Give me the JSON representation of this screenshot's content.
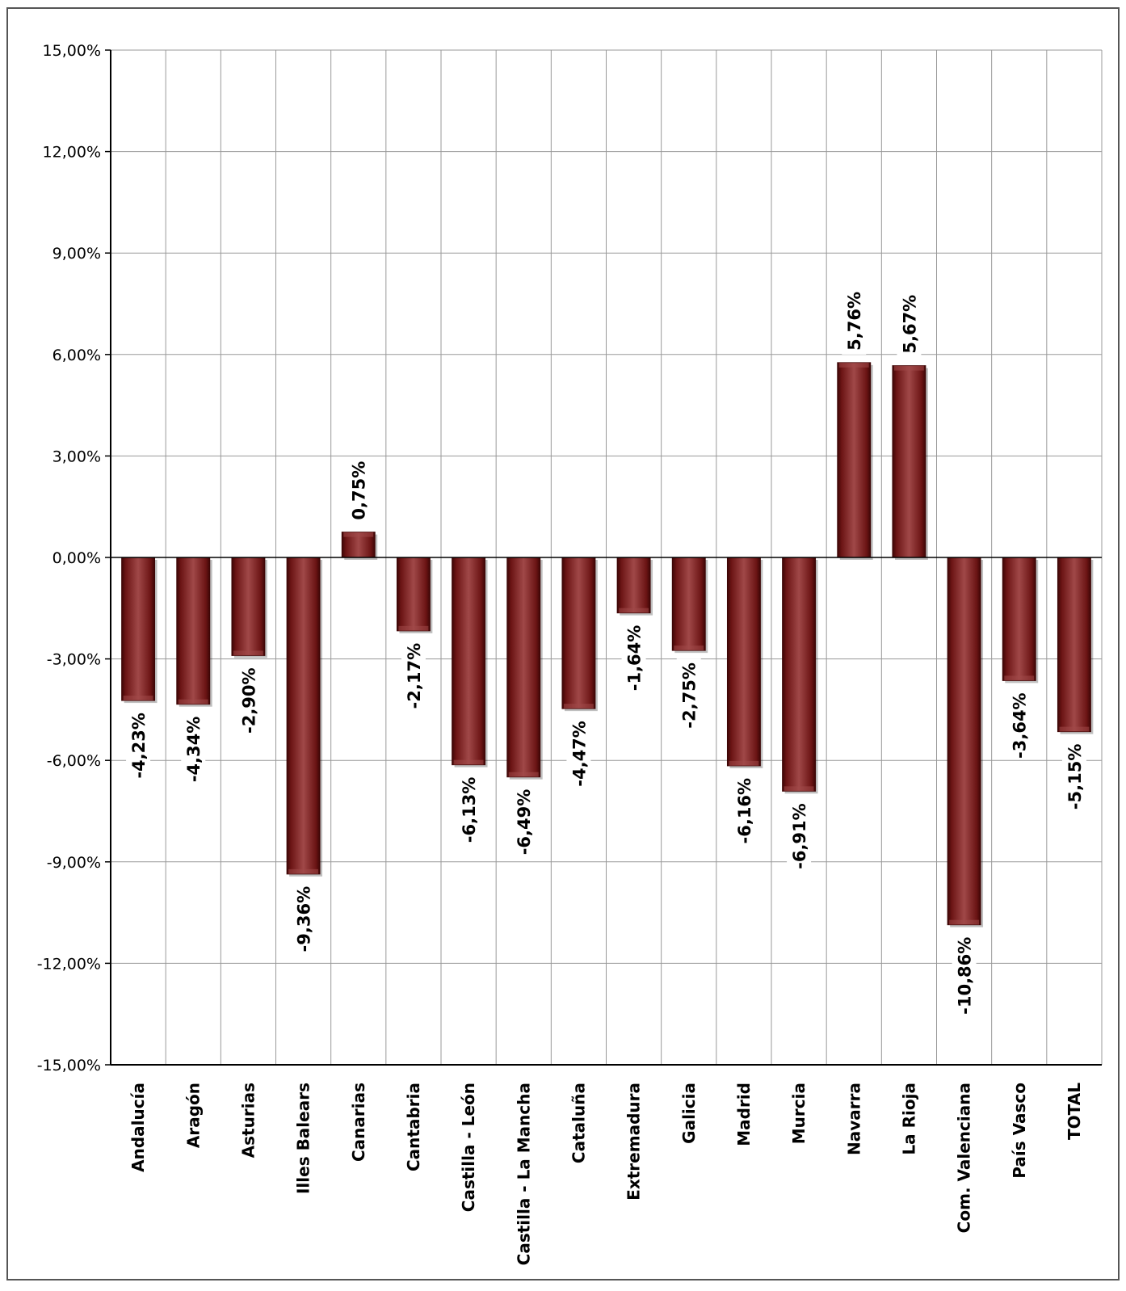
{
  "colors": {
    "bar": "#6b1414",
    "bar_dark": "#3d0606",
    "bar_light": "#a04848",
    "grid": "#999999",
    "axis": "#000000",
    "frame": "#555555"
  },
  "chart_data": {
    "type": "bar",
    "categories": [
      "Andalucía",
      "Aragón",
      "Asturias",
      "Illes Balears",
      "Canarias",
      "Cantabria",
      "Castilla - León",
      "Castilla - La Mancha",
      "Cataluña",
      "Extremadura",
      "Galicia",
      "Madrid",
      "Murcia",
      "Navarra",
      "La Rioja",
      "Com. Valenciana",
      "País Vasco",
      "TOTAL"
    ],
    "values": [
      -4.23,
      -4.34,
      -2.9,
      -9.36,
      0.75,
      -2.17,
      -6.13,
      -6.49,
      -4.47,
      -1.64,
      -2.75,
      -6.16,
      -6.91,
      5.76,
      5.67,
      -10.86,
      -3.64,
      -5.15
    ],
    "data_labels": [
      "-4,23%",
      "-4,34%",
      "-2,90%",
      "-9,36%",
      "0,75%",
      "-2,17%",
      "-6,13%",
      "-6,49%",
      "-4,47%",
      "-1,64%",
      "-2,75%",
      "-6,16%",
      "-6,91%",
      "5,76%",
      "5,67%",
      "-10,86%",
      "-3,64%",
      "-5,15%"
    ],
    "ylim": [
      -15,
      15
    ],
    "yticks": [
      15,
      12,
      9,
      6,
      3,
      0,
      -3,
      -6,
      -9,
      -12,
      -15
    ],
    "ytick_labels": [
      "15,00%",
      "12,00%",
      "9,00%",
      "6,00%",
      "3,00%",
      "0,00%",
      "-3,00%",
      "-6,00%",
      "-9,00%",
      "-12,00%",
      "-15,00%"
    ],
    "grid": true,
    "legend": "none"
  }
}
